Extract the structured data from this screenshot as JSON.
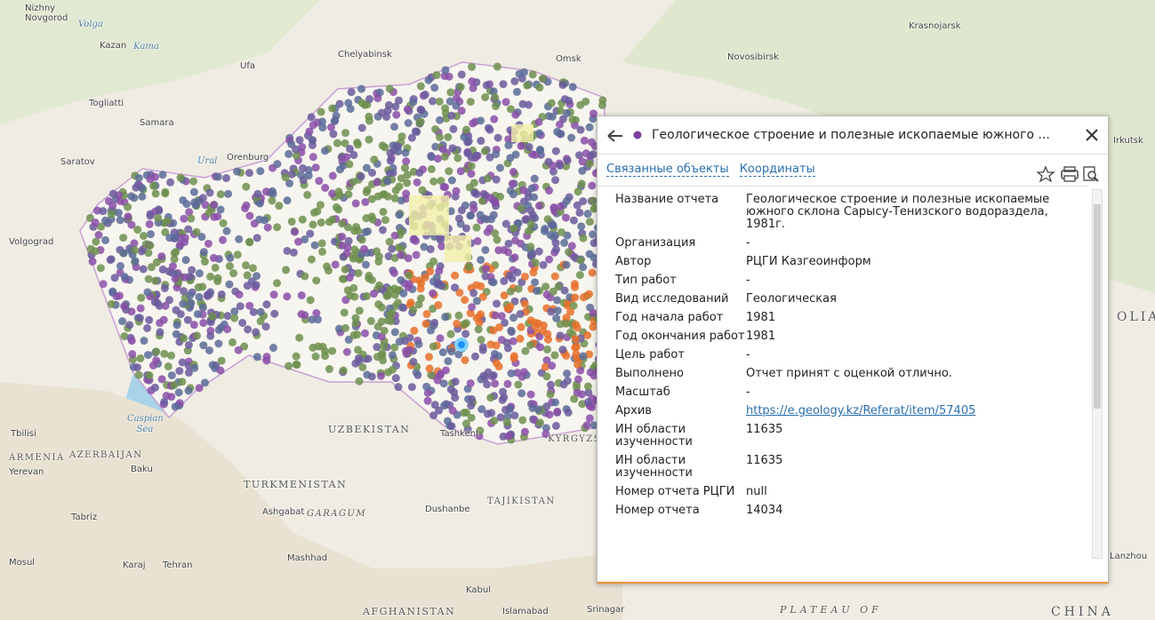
{
  "map": {
    "labels": [
      "Nizhny Novgorod",
      "Volga",
      "Kazan",
      "Kama",
      "Ufa",
      "Chelyabinsk",
      "Omsk",
      "Novosibirsk",
      "Krasnojarsk",
      "Irkutsk",
      "Togliatti",
      "Samara",
      "Saratov",
      "Ural",
      "Orenburg",
      "Volgograd",
      "Caspian Sea",
      "UZBEKISTAN",
      "TURKMENISTAN",
      "AZERBAIJAN",
      "ARMENIA",
      "Yerevan",
      "Tbilisi",
      "Baku",
      "Ashgabat",
      "GARAGUM",
      "Dushanbe",
      "TAJIKISTAN",
      "Tashkent",
      "KYRGYZS",
      "Tabriz",
      "Karaj",
      "Tehran",
      "Mosul",
      "Mashhad",
      "Kabul",
      "Islamabad",
      "Srinagar",
      "AFGHANISTAN",
      "PLATEAU OF",
      "CHINA",
      "Lanzhou",
      "OLIA"
    ]
  },
  "popup": {
    "title": "Геологическое строение и полезные ископаемые южного ...",
    "tabs": [
      "Связанные объекты",
      "Координаты"
    ],
    "fields": [
      {
        "label": "Название отчета",
        "value": "Геологическое строение и полезные ископаемые южного склона Сарысу-Тенизского водораздела, 1981г."
      },
      {
        "label": "Организация",
        "value": "-"
      },
      {
        "label": "Автор",
        "value": "РЦГИ Казгеоинформ"
      },
      {
        "label": "Тип работ",
        "value": "-"
      },
      {
        "label": "Вид исследований",
        "value": "Геологическая"
      },
      {
        "label": "Год начала работ",
        "value": "1981"
      },
      {
        "label": "Год окончания работ",
        "value": "1981"
      },
      {
        "label": "Цель работ",
        "value": "-"
      },
      {
        "label": "Выполнено",
        "value": "Отчет принят с оценкой отлично."
      },
      {
        "label": "Масштаб",
        "value": "-"
      },
      {
        "label": "Архив",
        "value": "https://e.geology.kz/Referat/item/57405"
      },
      {
        "label": "ИН области изученности",
        "value": "11635"
      },
      {
        "label": "ИН области изученности",
        "value": "11635"
      },
      {
        "label": "Номер отчета РЦГИ",
        "value": "null"
      },
      {
        "label": "Номер отчета",
        "value": "14034"
      }
    ]
  }
}
